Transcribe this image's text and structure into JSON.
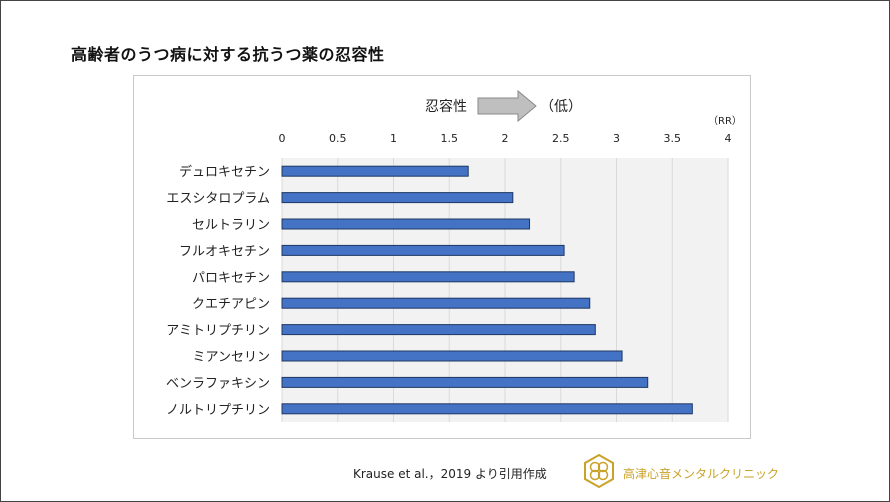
{
  "title": "高齢者のうつ病に対する抗うつ薬の忍容性",
  "annotation": {
    "left_label": "忍容性",
    "right_label": "（低）",
    "unit": "（RR）"
  },
  "source": "Krause et al.，2019 より引用作成",
  "clinic_name": "高津心音メンタルクリニック",
  "colors": {
    "bar_fill": "#4472c4",
    "bar_stroke": "#1f3864",
    "plot_bg": "#f2f2f2",
    "grid": "#d9d9d9",
    "arrow": "#bfbfbf",
    "logo_gold": "#c9a227"
  },
  "chart_data": {
    "type": "bar",
    "orientation": "horizontal",
    "title": "高齢者のうつ病に対する抗うつ薬の忍容性",
    "xlabel": "（RR）",
    "ylabel": "",
    "xlim": [
      0,
      4
    ],
    "xticks": [
      "0",
      "0.5",
      "1",
      "1.5",
      "2",
      "2.5",
      "3",
      "3.5",
      "4"
    ],
    "grid": true,
    "categories": [
      "デュロキセチン",
      "エスシタロプラム",
      "セルトラリン",
      "フルオキセチン",
      "パロキセチン",
      "クエチアピン",
      "アミトリプチリン",
      "ミアンセリン",
      "ベンラファキシン",
      "ノルトリプチリン"
    ],
    "values": [
      1.67,
      2.07,
      2.22,
      2.53,
      2.62,
      2.76,
      2.81,
      3.05,
      3.28,
      3.68
    ]
  }
}
